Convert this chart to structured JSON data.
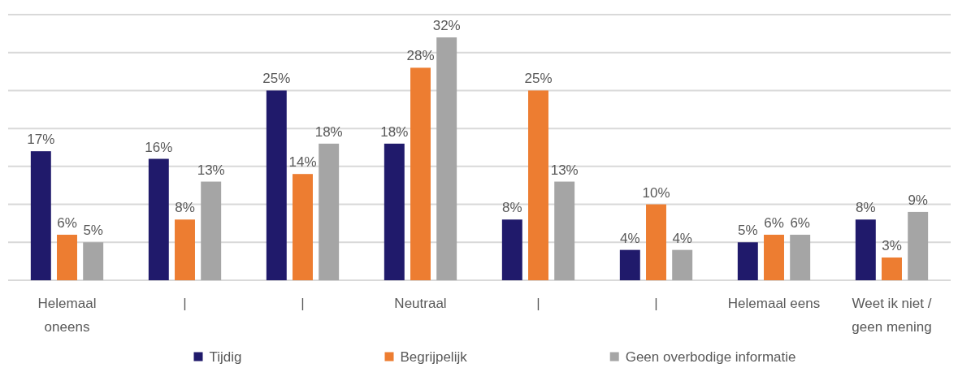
{
  "chart_data": {
    "type": "bar",
    "categories": [
      "Helemaal oneens",
      "|",
      "|",
      "Neutraal",
      "|",
      "|",
      "Helemaal eens",
      "Weet ik niet / geen mening"
    ],
    "series": [
      {
        "name": "Tijdig",
        "color": "#201a6b",
        "values": [
          17,
          16,
          25,
          18,
          8,
          4,
          5,
          8
        ],
        "value_labels": [
          "17%",
          "16%",
          "25%",
          "18%",
          "8%",
          "4%",
          "5%",
          "8%"
        ]
      },
      {
        "name": "Begrijpelijk",
        "color": "#ed7d31",
        "values": [
          6,
          8,
          14,
          28,
          25,
          10,
          6,
          3
        ],
        "value_labels": [
          "6%",
          "8%",
          "14%",
          "28%",
          "25%",
          "10%",
          "6%",
          "3%"
        ]
      },
      {
        "name": "Geen overbodige informatie",
        "color": "#a5a5a5",
        "values": [
          5,
          13,
          18,
          32,
          13,
          4,
          6,
          9
        ],
        "value_labels": [
          "5%",
          "13%",
          "18%",
          "32%",
          "13%",
          "4%",
          "6%",
          "9%"
        ]
      }
    ],
    "ylim": [
      0,
      35
    ],
    "yticks": [
      {
        "value": 0,
        "label": null
      },
      {
        "value": 5,
        "label": null
      },
      {
        "value": 10,
        "label": null
      },
      {
        "value": 15,
        "label": null
      },
      {
        "value": 20,
        "label": null
      },
      {
        "value": 25,
        "label": null
      },
      {
        "value": 30,
        "label": null
      },
      {
        "value": 35,
        "label": null
      }
    ],
    "tick_labels": "x",
    "grid": "y",
    "legend": "bottom"
  }
}
